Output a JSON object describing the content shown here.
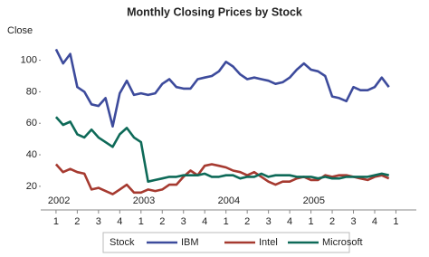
{
  "chart_data": {
    "type": "line",
    "title": "Monthly Closing Prices by Stock",
    "ylabel": "Close",
    "legend_title": "Stock",
    "legend": "bottom",
    "x": [
      2002,
      2002.083,
      2002.167,
      2002.25,
      2002.333,
      2002.417,
      2002.5,
      2002.583,
      2002.667,
      2002.75,
      2002.833,
      2002.917,
      2003,
      2003.083,
      2003.167,
      2003.25,
      2003.333,
      2003.417,
      2003.5,
      2003.583,
      2003.667,
      2003.75,
      2003.833,
      2003.917,
      2004,
      2004.083,
      2004.167,
      2004.25,
      2004.333,
      2004.417,
      2004.5,
      2004.583,
      2004.667,
      2004.75,
      2004.833,
      2004.917,
      2005,
      2005.083,
      2005.167,
      2005.25,
      2005.333,
      2005.417,
      2005.5,
      2005.583,
      2005.667,
      2005.75,
      2005.833,
      2005.917
    ],
    "series": [
      {
        "name": "IBM",
        "color": "#3d4b9c",
        "values": [
          107,
          98,
          104,
          83,
          80,
          72,
          71,
          76,
          58,
          79,
          87,
          78,
          79,
          78,
          79,
          85,
          88,
          83,
          82,
          82,
          88,
          89,
          90,
          93,
          99,
          96,
          91,
          88,
          89,
          88,
          87,
          85,
          86,
          89,
          94,
          98,
          94,
          93,
          90,
          77,
          76,
          74,
          83,
          81,
          81,
          83,
          89,
          83
        ]
      },
      {
        "name": "Intel",
        "color": "#a63a30",
        "values": [
          34,
          29,
          31,
          29,
          28,
          18,
          19,
          17,
          15,
          18,
          21,
          16,
          16,
          18,
          17,
          18,
          21,
          21,
          26,
          30,
          27,
          33,
          34,
          33,
          32,
          30,
          29,
          27,
          29,
          26,
          23,
          21,
          23,
          23,
          25,
          26,
          24,
          24,
          27,
          26,
          27,
          27,
          26,
          25,
          24,
          26,
          27,
          25
        ]
      },
      {
        "name": "Microsoft",
        "color": "#0e6a58",
        "values": [
          64,
          59,
          61,
          53,
          51,
          56,
          51,
          48,
          45,
          53,
          57,
          51,
          48,
          23,
          24,
          25,
          26,
          26,
          27,
          27,
          27,
          28,
          26,
          26,
          27,
          27,
          25,
          26,
          26,
          28,
          26,
          27,
          27,
          27,
          26,
          26,
          26,
          25,
          26,
          25,
          25,
          26,
          26,
          26,
          26,
          27,
          28,
          27
        ]
      }
    ],
    "xlim": [
      2001.82,
      2006.24
    ],
    "ylim": [
      5,
      121
    ],
    "yticks": [
      20,
      40,
      60,
      80,
      100
    ],
    "xticks": [
      {
        "value": 2002,
        "label": "1"
      },
      {
        "value": 2002.25,
        "label": "2"
      },
      {
        "value": 2002.5,
        "label": "3"
      },
      {
        "value": 2002.75,
        "label": "4"
      },
      {
        "value": 2003,
        "label": "1"
      },
      {
        "value": 2003.25,
        "label": "2"
      },
      {
        "value": 2003.5,
        "label": "3"
      },
      {
        "value": 2003.75,
        "label": "4"
      },
      {
        "value": 2004,
        "label": "1"
      },
      {
        "value": 2004.25,
        "label": "2"
      },
      {
        "value": 2004.5,
        "label": "3"
      },
      {
        "value": 2004.75,
        "label": "4"
      },
      {
        "value": 2005,
        "label": "1"
      },
      {
        "value": 2005.25,
        "label": "2"
      },
      {
        "value": 2005.5,
        "label": "3"
      },
      {
        "value": 2005.75,
        "label": "4"
      },
      {
        "value": 2006,
        "label": "1"
      }
    ],
    "x_year_ticks": [
      2002,
      2003,
      2004,
      2005
    ]
  }
}
